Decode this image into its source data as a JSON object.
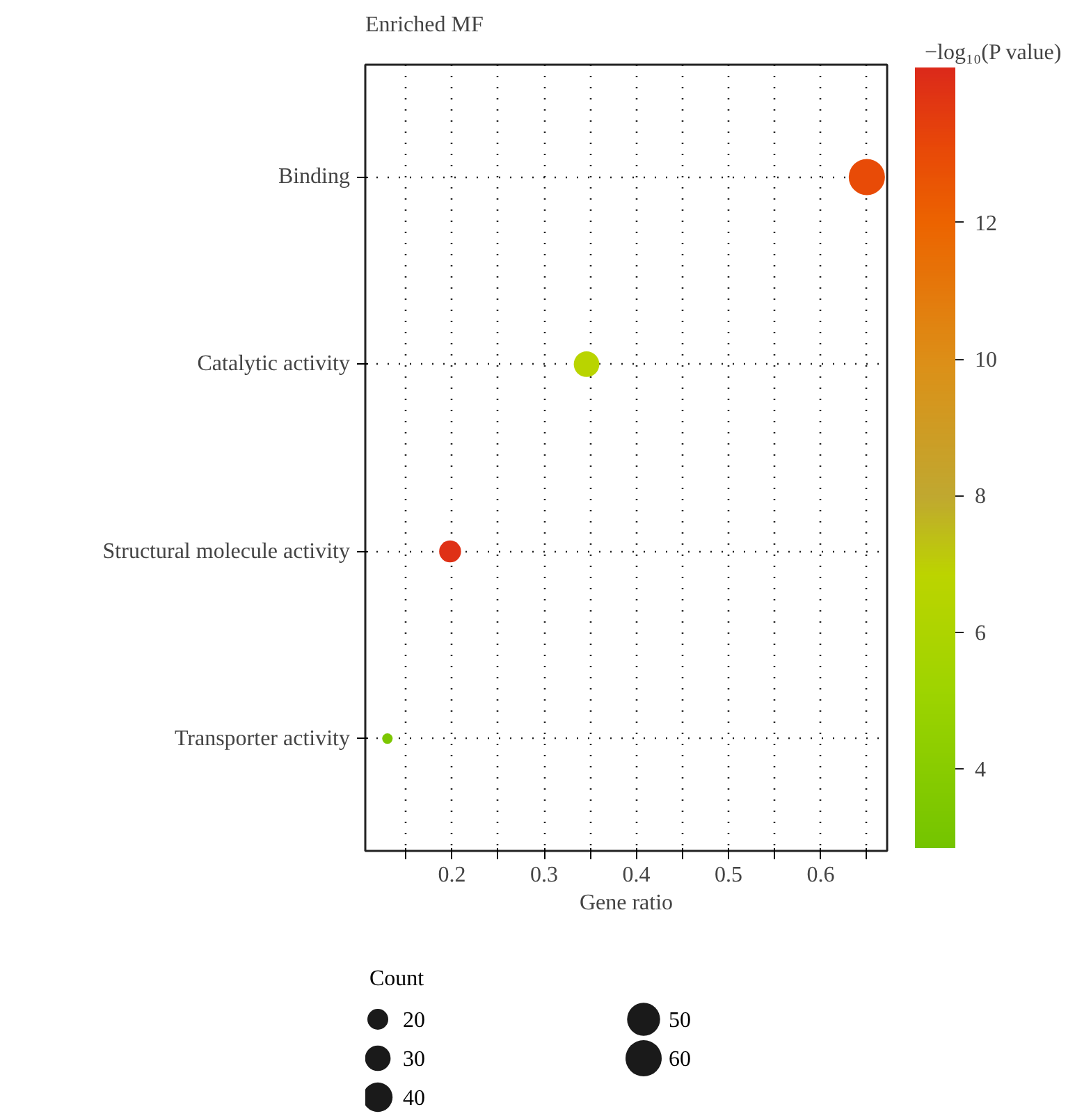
{
  "chart_data": {
    "type": "bubble",
    "title": "Enriched MF",
    "xlabel": "Gene ratio",
    "clabel": "−log₁₀(P value)",
    "legend_title": "Count",
    "categories": [
      "Binding",
      "Catalytic activity",
      "Structural molecule activity",
      "Transporter activity"
    ],
    "values": [
      0.65,
      0.346,
      0.198,
      0.13
    ],
    "sizes": [
      60,
      30,
      22,
      5
    ],
    "cvalues": [
      13.0,
      6.7,
      14.0,
      3.3
    ],
    "size_legend": [
      20,
      30,
      40,
      50,
      60
    ],
    "clim": [
      2.84,
      14.27
    ],
    "cticks": [
      4,
      6,
      8,
      10,
      12
    ],
    "xlim": [
      0.106,
      0.672
    ],
    "xticks": [
      {
        "value": 0.15,
        "label": null
      },
      0.2,
      {
        "value": 0.25,
        "label": null
      },
      0.3,
      {
        "value": 0.35,
        "label": null
      },
      0.4,
      {
        "value": 0.45,
        "label": null
      },
      0.5,
      {
        "value": 0.55,
        "label": null
      },
      0.6,
      {
        "value": 0.65,
        "label": null
      }
    ],
    "grid": true,
    "orientation": "horizontal"
  }
}
